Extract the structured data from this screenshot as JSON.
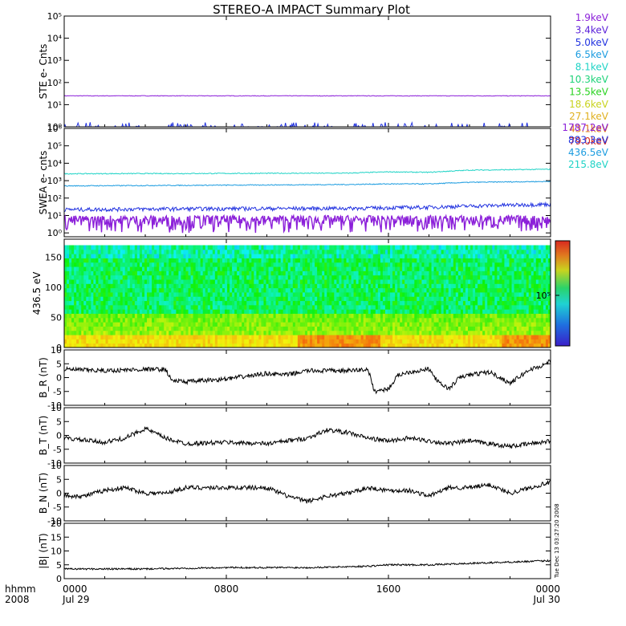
{
  "title": "STEREO-A IMPACT Summary Plot",
  "timestamp": "Tue Dec 13 03:27:20 2008",
  "time_axis": {
    "label_top": "hhmm",
    "label_bottom": "2008",
    "ticks": [
      {
        "hhmm": "0000",
        "date": "Jul 29",
        "hours": 0
      },
      {
        "hhmm": "0800",
        "date": "",
        "hours": 8
      },
      {
        "hhmm": "1600",
        "date": "",
        "hours": 16
      },
      {
        "hhmm": "0000",
        "date": "Jul 30",
        "hours": 24
      }
    ]
  },
  "colors": {
    "1.9keV": "#8b1fd9",
    "3.4keV": "#5a1fd9",
    "5.0keV": "#2233e0",
    "6.5keV": "#1c9ce0",
    "8.1keV": "#1fd3c6",
    "10.3keV": "#1fd37a",
    "13.5keV": "#2ad321",
    "18.6keV": "#c9d31f",
    "27.1keV": "#e0b01f",
    "43.1keV": "#e07a1f",
    "79.0keV": "#d9281f",
    "1787.2eV": "#8b1fd9",
    "883.3eV": "#2233e0",
    "436.5eV": "#1c9ce0",
    "215.8eV": "#1fd3c6"
  },
  "chart_data": [
    {
      "type": "line",
      "ylabel": "STE e- Cnts",
      "yscale": "log",
      "ylim": [
        1,
        100000
      ],
      "yticks": [
        "10⁰",
        "10¹",
        "10²",
        "10³",
        "10⁴",
        "10⁵"
      ],
      "legend": [
        "1.9keV",
        "3.4keV",
        "5.0keV",
        "6.5keV",
        "8.1keV",
        "10.3keV",
        "13.5keV",
        "18.6keV",
        "27.1keV",
        "43.1keV",
        "79.0keV"
      ],
      "series": [
        {
          "name": "1.9keV",
          "level": 25,
          "noise": 0.06
        },
        {
          "name": "5.0keV",
          "level": 1,
          "noise": 0.3
        }
      ]
    },
    {
      "type": "line",
      "ylabel": "SWEA e- cnts",
      "yscale": "log",
      "ylim": [
        0.6,
        1000000
      ],
      "yticks": [
        "10⁰",
        "10¹",
        "10²",
        "10³",
        "10⁴",
        "10⁵",
        "10⁶"
      ],
      "legend": [
        "1787.2eV",
        "883.3eV",
        "436.5eV",
        "215.8eV"
      ],
      "series": [
        {
          "name": "215.8eV",
          "x": [
            0,
            8,
            14,
            16,
            18,
            20,
            24
          ],
          "y": [
            2500,
            2600,
            2700,
            3200,
            3000,
            4000,
            4500
          ]
        },
        {
          "name": "436.5eV",
          "x": [
            0,
            8,
            14,
            16,
            18,
            20,
            24
          ],
          "y": [
            500,
            550,
            600,
            650,
            650,
            800,
            900
          ]
        },
        {
          "name": "883.3eV",
          "x": [
            0,
            8,
            14,
            16,
            18,
            20,
            24
          ],
          "y": [
            22,
            25,
            26,
            28,
            30,
            35,
            45
          ]
        },
        {
          "name": "1787.2eV",
          "x": [
            0,
            24
          ],
          "y": [
            4,
            4
          ]
        }
      ]
    },
    {
      "type": "heatmap",
      "ylabel": "436.5 eV",
      "ylim": [
        0,
        180
      ],
      "yticks": [
        0,
        50,
        100,
        150
      ],
      "colorbar_label": "10⁵",
      "description": "pitch angle distribution"
    },
    {
      "type": "line",
      "ylabel": "B_R (nT)",
      "ylim": [
        -10,
        10
      ],
      "yticks": [
        -10,
        -5,
        0,
        5,
        10
      ],
      "x": [
        0,
        2,
        4,
        5,
        5.3,
        6,
        8,
        10,
        11,
        12,
        14,
        15,
        15.3,
        16,
        16.5,
        17,
        18,
        18.5,
        19,
        19.5,
        20,
        21,
        22,
        23,
        23.5,
        24
      ],
      "y": [
        3,
        2.5,
        3,
        3,
        -1,
        -1.5,
        -0.5,
        1.5,
        1,
        2.5,
        2.5,
        3,
        -5,
        -4,
        1,
        2,
        3,
        -2,
        -4,
        0,
        1,
        2,
        -2,
        3,
        4,
        6
      ]
    },
    {
      "type": "line",
      "ylabel": "B_T (nT)",
      "ylim": [
        -10,
        10
      ],
      "yticks": [
        -10,
        -5,
        0,
        5,
        10
      ],
      "x": [
        0,
        2,
        3,
        4,
        5,
        6,
        8,
        10,
        12,
        13,
        14,
        15,
        16,
        17,
        18,
        19,
        20,
        21,
        22,
        23,
        24
      ],
      "y": [
        -1,
        -2.5,
        -1,
        2.5,
        -1,
        -3,
        -2.5,
        -3,
        -1,
        2,
        1,
        -1,
        -2,
        -1,
        -2,
        -3,
        -2,
        -3,
        -4,
        -3,
        -2
      ]
    },
    {
      "type": "line",
      "ylabel": "B_N (nT)",
      "ylim": [
        -10,
        10
      ],
      "yticks": [
        -10,
        -5,
        0,
        5,
        10
      ],
      "x": [
        0,
        1,
        2,
        3,
        4,
        5,
        6,
        8,
        10,
        11,
        12,
        13,
        14,
        15,
        16,
        17,
        18,
        19,
        20,
        21,
        22,
        23,
        24
      ],
      "y": [
        -1,
        -1,
        1,
        2,
        0,
        0,
        2,
        2,
        2,
        -1,
        -3,
        -1,
        0,
        2,
        1,
        1,
        -1,
        2,
        2,
        3,
        0,
        2,
        4
      ]
    },
    {
      "type": "line",
      "ylabel": "|B| (nT)",
      "ylim": [
        0,
        20
      ],
      "yticks": [
        0,
        5,
        10,
        15,
        20
      ],
      "x": [
        0,
        4,
        8,
        12,
        15,
        16,
        18,
        20,
        22,
        24
      ],
      "y": [
        3.5,
        3.5,
        4,
        4,
        4.5,
        5,
        5,
        5.5,
        6,
        6.5
      ]
    }
  ]
}
